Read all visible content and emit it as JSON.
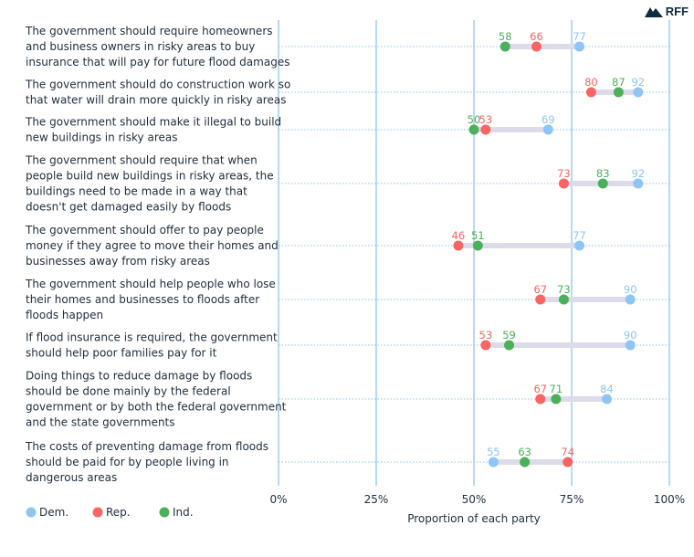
{
  "logo": {
    "text": "RFF"
  },
  "chart_data": {
    "type": "dot",
    "xlabel": "Proportion of each party",
    "xlim": [
      0,
      100
    ],
    "xticks": [
      0,
      25,
      50,
      75,
      100
    ],
    "xtick_labels": [
      "0%",
      "25%",
      "50%",
      "75%",
      "100%"
    ],
    "grid": true,
    "legend_placement": "bottom-left",
    "series": [
      {
        "name": "Dem.",
        "color": "#8ec5f5",
        "values": [
          77,
          92,
          69,
          92,
          77,
          90,
          90,
          84,
          55
        ]
      },
      {
        "name": "Rep.",
        "color": "#f96464",
        "values": [
          66,
          80,
          53,
          73,
          46,
          67,
          53,
          67,
          74
        ]
      },
      {
        "name": "Ind.",
        "color": "#4caf5a",
        "values": [
          58,
          87,
          50,
          83,
          51,
          73,
          59,
          71,
          63
        ]
      }
    ],
    "categories": [
      [
        "The government should require homeowners",
        "and business owners in risky areas to buy",
        "insurance that will pay for future flood damages"
      ],
      [
        "The government should do construction work so",
        "that water will drain more quickly in risky areas"
      ],
      [
        "The government should make it illegal to build",
        "new buildings in risky areas"
      ],
      [
        "The government should require that when",
        "people build new buildings in risky areas, the",
        "buildings need to be made in a way that",
        "doesn't get damaged easily by floods"
      ],
      [
        "The government should offer to pay people",
        "money if they agree to move their homes and",
        "businesses away from risky areas"
      ],
      [
        "The government should help people who lose",
        "their homes and businesses to floods after",
        "floods happen"
      ],
      [
        "If flood insurance is required, the government",
        "should help poor families pay for it"
      ],
      [
        "Doing things to reduce damage by floods",
        "should be done mainly by the federal",
        "government or by both the federal government",
        "and the state governments"
      ],
      [
        "The costs of preventing damage from floods",
        "should be paid for by people living in",
        "dangerous areas"
      ]
    ]
  }
}
